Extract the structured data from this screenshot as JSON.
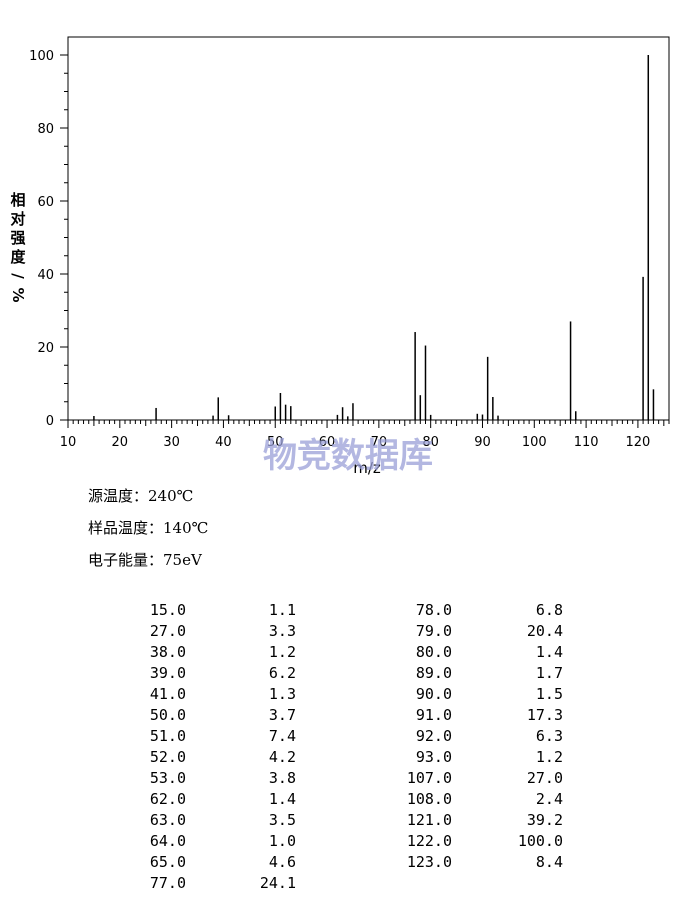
{
  "chart_data": {
    "type": "bar",
    "xlabel": "m/z",
    "ylabel": "相对强度/%",
    "xlim": [
      10,
      126
    ],
    "ylim": [
      0,
      100
    ],
    "x_ticks": [
      10,
      20,
      30,
      40,
      50,
      60,
      70,
      80,
      90,
      100,
      110,
      120
    ],
    "y_ticks": [
      0,
      20,
      40,
      60,
      80,
      100
    ],
    "x": [
      15,
      27,
      38,
      39,
      41,
      50,
      51,
      52,
      53,
      62,
      63,
      64,
      65,
      77,
      78,
      79,
      80,
      89,
      90,
      91,
      92,
      93,
      107,
      108,
      121,
      122,
      123
    ],
    "values": [
      1.1,
      3.3,
      1.2,
      6.2,
      1.3,
      3.7,
      7.4,
      4.2,
      3.8,
      1.4,
      3.5,
      1.0,
      4.6,
      24.1,
      6.8,
      20.4,
      1.4,
      1.7,
      1.5,
      17.3,
      6.3,
      1.2,
      27.0,
      2.4,
      39.2,
      100.0,
      8.4
    ],
    "grid": false
  },
  "watermark": "物竞数据库",
  "conditions": [
    {
      "label": "源温度：",
      "value": "240℃"
    },
    {
      "label": "样品温度：",
      "value": "140℃"
    },
    {
      "label": "电子能量：",
      "value": "75eV"
    }
  ],
  "table": {
    "left": [
      [
        "15.0",
        "1.1"
      ],
      [
        "27.0",
        "3.3"
      ],
      [
        "38.0",
        "1.2"
      ],
      [
        "39.0",
        "6.2"
      ],
      [
        "41.0",
        "1.3"
      ],
      [
        "50.0",
        "3.7"
      ],
      [
        "51.0",
        "7.4"
      ],
      [
        "52.0",
        "4.2"
      ],
      [
        "53.0",
        "3.8"
      ],
      [
        "62.0",
        "1.4"
      ],
      [
        "63.0",
        "3.5"
      ],
      [
        "64.0",
        "1.0"
      ],
      [
        "65.0",
        "4.6"
      ],
      [
        "77.0",
        "24.1"
      ]
    ],
    "right": [
      [
        "78.0",
        "6.8"
      ],
      [
        "79.0",
        "20.4"
      ],
      [
        "80.0",
        "1.4"
      ],
      [
        "89.0",
        "1.7"
      ],
      [
        "90.0",
        "1.5"
      ],
      [
        "91.0",
        "17.3"
      ],
      [
        "92.0",
        "6.3"
      ],
      [
        "93.0",
        "1.2"
      ],
      [
        "107.0",
        "27.0"
      ],
      [
        "108.0",
        "2.4"
      ],
      [
        "121.0",
        "39.2"
      ],
      [
        "122.0",
        "100.0"
      ],
      [
        "123.0",
        "8.4"
      ]
    ]
  }
}
